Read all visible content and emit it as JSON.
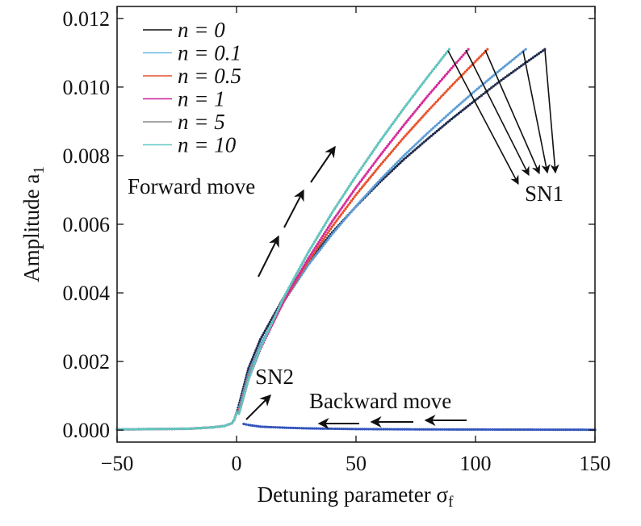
{
  "chart_data": {
    "type": "scatter",
    "title": "",
    "xlabel": "Detuning parameter σ",
    "xlabel_sub": "f",
    "ylabel": "Amplitude a",
    "ylabel_sub": "1",
    "xlim": [
      -50,
      150
    ],
    "ylim": [
      -0.00035,
      0.01235
    ],
    "xticks": [
      -50,
      0,
      50,
      100,
      150
    ],
    "xtick_labels": [
      "−50",
      "0",
      "50",
      "100",
      "150"
    ],
    "yticks": [
      0,
      0.002,
      0.004,
      0.006,
      0.008,
      0.01,
      0.012
    ],
    "ytick_labels": [
      "0.000",
      "0.002",
      "0.004",
      "0.006",
      "0.008",
      "0.010",
      "0.012"
    ],
    "grid": false,
    "legend_position": "top-left",
    "left_branch": {
      "x": [
        -50,
        -20,
        -10,
        -5,
        -2,
        -1,
        0
      ],
      "y": [
        2e-05,
        4e-05,
        8e-05,
        0.00012,
        0.0002,
        0.0003,
        0.0005
      ]
    },
    "lower_branch": {
      "x": [
        3,
        5,
        10,
        20,
        30,
        50,
        80,
        150
      ],
      "y": [
        0.00018,
        0.00015,
        0.0001,
        7e-05,
        5e-05,
        3e-05,
        2e-05,
        1e-05
      ],
      "color": "#3355bb"
    },
    "series": [
      {
        "name": "n=0",
        "legend": "n = 0",
        "color": "#1f2a4a",
        "line_color": "#111111",
        "x": [
          0,
          1,
          5,
          10,
          20,
          30,
          40,
          50,
          60,
          70,
          80,
          90,
          100,
          110,
          120,
          129
        ],
        "y": [
          0.0005,
          0.00073,
          0.0018,
          0.00265,
          0.0039,
          0.0049,
          0.00576,
          0.00652,
          0.00723,
          0.00789,
          0.00849,
          0.00907,
          0.00962,
          0.01016,
          0.01066,
          0.0111
        ]
      },
      {
        "name": "n=0.1",
        "legend": "n = 0.1",
        "color": "#5b9bd5",
        "line_color": "#6bb8e0",
        "x": [
          0,
          1,
          5,
          10,
          20,
          30,
          40,
          50,
          60,
          70,
          80,
          90,
          100,
          110,
          121
        ],
        "y": [
          0.0005,
          0.00062,
          0.00164,
          0.00249,
          0.00377,
          0.00481,
          0.00571,
          0.00653,
          0.00729,
          0.008,
          0.00866,
          0.00929,
          0.0099,
          0.01048,
          0.0111
        ]
      },
      {
        "name": "n=0.5",
        "legend": "n = 0.5",
        "color": "#e8502a",
        "line_color": "#e0502a",
        "x": [
          0,
          1,
          5,
          10,
          20,
          30,
          40,
          50,
          60,
          70,
          80,
          90,
          105
        ],
        "y": [
          0.0005,
          0.00054,
          0.00153,
          0.00241,
          0.00378,
          0.00492,
          0.00593,
          0.00686,
          0.00771,
          0.00853,
          0.0093,
          0.01004,
          0.0111
        ]
      },
      {
        "name": "n=1",
        "legend": "n = 1",
        "color": "#d42a9a",
        "line_color": "#c8209a",
        "x": [
          0,
          1,
          5,
          10,
          20,
          30,
          40,
          50,
          60,
          70,
          80,
          90,
          97
        ],
        "y": [
          0.0005,
          0.0005,
          0.00148,
          0.00237,
          0.0038,
          0.005,
          0.00608,
          0.00707,
          0.008,
          0.00889,
          0.00974,
          0.01055,
          0.0111
        ]
      },
      {
        "name": "n=5",
        "legend": "n = 5",
        "color": "#808080",
        "line_color": "#888888",
        "x": [
          0,
          1,
          5,
          10,
          20,
          30,
          40,
          50,
          60,
          70,
          80,
          89
        ],
        "y": [
          0.0005,
          0.00048,
          0.00148,
          0.0024,
          0.0039,
          0.00518,
          0.00634,
          0.00741,
          0.00842,
          0.00938,
          0.0103,
          0.0111
        ]
      },
      {
        "name": "n=10",
        "legend": "n = 10",
        "color": "#5fc8c0",
        "line_color": "#5fc8c0",
        "x": [
          0,
          1,
          5,
          10,
          20,
          30,
          40,
          50,
          60,
          70,
          80,
          89
        ],
        "y": [
          0.0005,
          0.00048,
          0.00148,
          0.0024,
          0.0039,
          0.00518,
          0.00634,
          0.00741,
          0.00842,
          0.00938,
          0.0103,
          0.0111
        ]
      }
    ],
    "annotations": {
      "forward": "Forward move",
      "backward": "Backward move",
      "sn1": "SN1",
      "sn2": "SN2"
    }
  }
}
